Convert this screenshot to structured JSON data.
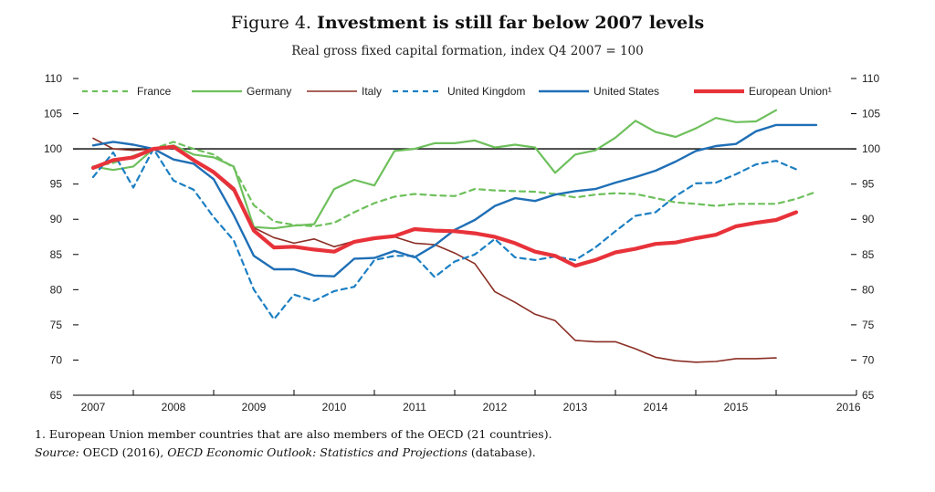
{
  "figure": {
    "number": "Figure 4.",
    "title": "Investment is still far below 2007 levels",
    "subtitle": "Real gross fixed capital formation, index Q4 2007 = 100",
    "footnote": "1.  European Union member countries that are also members of the OECD (21 countries).",
    "source_label": "Source:",
    "source_text_1": "OECD (2016),",
    "source_italic": "OECD Economic Outlook: Statistics and Projections",
    "source_text_2": "(database)."
  },
  "chart_data": {
    "type": "line",
    "title": "Investment is still far below 2007 levels",
    "subtitle": "Real gross fixed capital formation, index Q4 2007 = 100",
    "xlabel": "",
    "ylabel": "",
    "ylim": [
      65,
      110
    ],
    "yticks": [
      65,
      70,
      75,
      80,
      85,
      90,
      95,
      100,
      105,
      110
    ],
    "xlim": [
      2006.75,
      2016.5
    ],
    "year_labels": [
      "2007",
      "2008",
      "2009",
      "2010",
      "2011",
      "2012",
      "2013",
      "2014",
      "2015",
      "2016"
    ],
    "reference_line": 100,
    "grid": false,
    "legend_position": "top",
    "series": [
      {
        "name": "France",
        "color": "#6ec05c",
        "style": "dashed",
        "width": 2.2,
        "x": [
          2007.0,
          2007.25,
          2007.5,
          2007.75,
          2008.0,
          2008.25,
          2008.5,
          2008.75,
          2009.0,
          2009.25,
          2009.5,
          2009.75,
          2010.0,
          2010.25,
          2010.5,
          2010.75,
          2011.0,
          2011.25,
          2011.5,
          2011.75,
          2012.0,
          2012.25,
          2012.5,
          2012.75,
          2013.0,
          2013.25,
          2013.5,
          2013.75,
          2014.0,
          2014.25,
          2014.5,
          2014.75,
          2015.0,
          2015.25,
          2015.5,
          2015.75,
          2016.0
        ],
        "y": [
          97.5,
          98.0,
          99.0,
          100.0,
          101.0,
          100.0,
          99.2,
          97.3,
          92.0,
          89.7,
          89.2,
          89.0,
          89.5,
          91.0,
          92.3,
          93.2,
          93.6,
          93.4,
          93.3,
          94.3,
          94.1,
          94.0,
          93.9,
          93.6,
          93.1,
          93.5,
          93.7,
          93.6,
          93.0,
          92.4,
          92.2,
          91.9,
          92.2,
          92.2,
          92.2,
          92.9,
          93.9
        ]
      },
      {
        "name": "Germany",
        "color": "#6ec05c",
        "style": "solid",
        "width": 2.2,
        "x": [
          2007.0,
          2007.25,
          2007.5,
          2007.75,
          2008.0,
          2008.25,
          2008.5,
          2008.75,
          2009.0,
          2009.25,
          2009.5,
          2009.75,
          2010.0,
          2010.25,
          2010.5,
          2010.75,
          2011.0,
          2011.25,
          2011.5,
          2011.75,
          2012.0,
          2012.25,
          2012.5,
          2012.75,
          2013.0,
          2013.25,
          2013.5,
          2013.75,
          2014.0,
          2014.25,
          2014.5,
          2014.75,
          2015.0,
          2015.25,
          2015.5,
          2015.75
        ],
        "y": [
          97.5,
          97.0,
          97.5,
          100.0,
          100.5,
          99.2,
          98.8,
          97.5,
          88.9,
          88.7,
          89.1,
          89.3,
          94.3,
          95.6,
          94.8,
          99.7,
          100.0,
          100.8,
          100.8,
          101.2,
          100.2,
          100.6,
          100.2,
          96.6,
          99.2,
          99.8,
          101.6,
          104.0,
          102.4,
          101.7,
          102.9,
          104.4,
          103.8,
          103.9,
          105.5,
          null
        ]
      },
      {
        "name": "Italy",
        "color": "#8b2e24",
        "style": "solid",
        "width": 1.6,
        "x": [
          2007.0,
          2007.25,
          2007.5,
          2007.75,
          2008.0,
          2008.25,
          2008.5,
          2008.75,
          2009.0,
          2009.25,
          2009.5,
          2009.75,
          2010.0,
          2010.25,
          2010.5,
          2010.75,
          2011.0,
          2011.25,
          2011.5,
          2011.75,
          2012.0,
          2012.25,
          2012.5,
          2012.75,
          2013.0,
          2013.25,
          2013.5,
          2013.75,
          2014.0,
          2014.25,
          2014.5,
          2014.75,
          2015.0,
          2015.25,
          2015.5
        ],
        "y": [
          101.5,
          100.0,
          99.8,
          100.0,
          100.2,
          98.6,
          96.5,
          94.0,
          88.8,
          87.4,
          86.6,
          87.2,
          86.1,
          86.9,
          87.2,
          87.5,
          86.6,
          86.4,
          85.2,
          83.7,
          79.7,
          78.2,
          76.5,
          75.6,
          72.8,
          72.6,
          72.6,
          71.6,
          70.4,
          69.9,
          69.7,
          69.8,
          70.2,
          70.2,
          70.3
        ]
      },
      {
        "name": "United Kingdom",
        "color": "#1c7fc3",
        "style": "dashed",
        "width": 2.2,
        "x": [
          2007.0,
          2007.25,
          2007.5,
          2007.75,
          2008.0,
          2008.25,
          2008.5,
          2008.75,
          2009.0,
          2009.25,
          2009.5,
          2009.75,
          2010.0,
          2010.25,
          2010.5,
          2010.75,
          2011.0,
          2011.25,
          2011.5,
          2011.75,
          2012.0,
          2012.25,
          2012.5,
          2012.75,
          2013.0,
          2013.25,
          2013.5,
          2013.75,
          2014.0,
          2014.25,
          2014.5,
          2014.75,
          2015.0,
          2015.25,
          2015.5,
          2015.75
        ],
        "y": [
          96.0,
          99.5,
          94.5,
          100.0,
          95.5,
          94.2,
          90.3,
          87.0,
          80.0,
          75.8,
          79.3,
          78.4,
          79.8,
          80.4,
          84.2,
          84.8,
          84.8,
          81.8,
          84.0,
          85.0,
          87.2,
          84.6,
          84.2,
          84.7,
          84.2,
          86.0,
          88.3,
          90.5,
          91.0,
          93.3,
          95.1,
          95.2,
          96.4,
          97.8,
          98.3,
          97.1
        ]
      },
      {
        "name": "United States",
        "color": "#1f6fb6",
        "style": "solid",
        "width": 2.4,
        "x": [
          2007.0,
          2007.25,
          2007.5,
          2007.75,
          2008.0,
          2008.25,
          2008.5,
          2008.75,
          2009.0,
          2009.25,
          2009.5,
          2009.75,
          2010.0,
          2010.25,
          2010.5,
          2010.75,
          2011.0,
          2011.25,
          2011.5,
          2011.75,
          2012.0,
          2012.25,
          2012.5,
          2012.75,
          2013.0,
          2013.25,
          2013.5,
          2013.75,
          2014.0,
          2014.25,
          2014.5,
          2014.75,
          2015.0,
          2015.25,
          2015.5,
          2015.75,
          2016.0
        ],
        "y": [
          100.5,
          101.0,
          100.6,
          100.0,
          98.5,
          97.9,
          95.7,
          90.6,
          84.8,
          82.9,
          82.9,
          82.0,
          81.9,
          84.4,
          84.5,
          85.5,
          84.6,
          86.3,
          88.5,
          89.9,
          91.9,
          93.0,
          92.6,
          93.5,
          94.0,
          94.3,
          95.2,
          96.0,
          96.9,
          98.2,
          99.7,
          100.4,
          100.7,
          102.5,
          103.4,
          103.4,
          103.4
        ]
      },
      {
        "name": "European Union¹",
        "color": "#e8323a",
        "style": "solid",
        "width": 4.2,
        "x": [
          2007.0,
          2007.25,
          2007.5,
          2007.75,
          2008.0,
          2008.25,
          2008.5,
          2008.75,
          2009.0,
          2009.25,
          2009.5,
          2009.75,
          2010.0,
          2010.25,
          2010.5,
          2010.75,
          2011.0,
          2011.25,
          2011.5,
          2011.75,
          2012.0,
          2012.25,
          2012.5,
          2012.75,
          2013.0,
          2013.25,
          2013.5,
          2013.75,
          2014.0,
          2014.25,
          2014.5,
          2014.75,
          2015.0,
          2015.25,
          2015.5,
          2015.75
        ],
        "y": [
          97.3,
          98.4,
          98.8,
          100.0,
          100.3,
          98.4,
          96.7,
          94.3,
          88.4,
          86.0,
          86.1,
          85.7,
          85.4,
          86.8,
          87.3,
          87.6,
          88.6,
          88.4,
          88.3,
          88.0,
          87.5,
          86.6,
          85.4,
          84.8,
          83.4,
          84.2,
          85.3,
          85.8,
          86.5,
          86.7,
          87.3,
          87.8,
          89.0,
          89.5,
          89.9,
          91.0
        ]
      }
    ]
  }
}
